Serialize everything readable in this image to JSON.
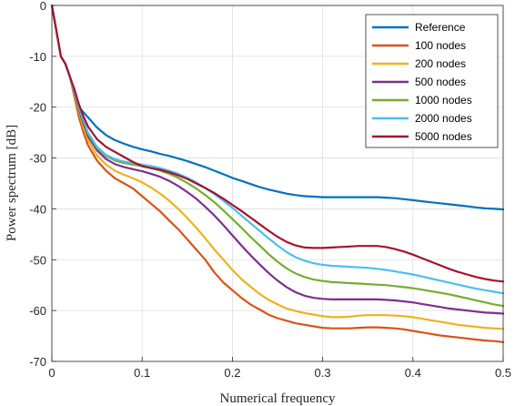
{
  "chart_data": {
    "type": "line",
    "title": "",
    "xlabel": "Numerical frequency",
    "ylabel": "Power spectrum [dB]",
    "xlim": [
      0,
      0.5
    ],
    "ylim": [
      -70,
      0
    ],
    "xticks": [
      0,
      0.1,
      0.2,
      0.3,
      0.4,
      0.5
    ],
    "yticks": [
      0,
      -10,
      -20,
      -30,
      -40,
      -50,
      -60,
      -70
    ],
    "grid": true,
    "legend_position": "top-right",
    "x": [
      0,
      0.005,
      0.01,
      0.015,
      0.02,
      0.025,
      0.03,
      0.035,
      0.04,
      0.05,
      0.06,
      0.07,
      0.08,
      0.09,
      0.1,
      0.11,
      0.12,
      0.13,
      0.14,
      0.15,
      0.16,
      0.17,
      0.18,
      0.19,
      0.2,
      0.21,
      0.22,
      0.23,
      0.24,
      0.25,
      0.26,
      0.27,
      0.28,
      0.29,
      0.3,
      0.31,
      0.32,
      0.33,
      0.34,
      0.35,
      0.36,
      0.37,
      0.38,
      0.39,
      0.4,
      0.41,
      0.42,
      0.43,
      0.44,
      0.45,
      0.46,
      0.47,
      0.48,
      0.49,
      0.5
    ],
    "series": [
      {
        "name": "Reference",
        "color": "#0072BD",
        "values": [
          0,
          -5,
          -10,
          -11.5,
          -14,
          -17,
          -20,
          -21,
          -22,
          -24,
          -25.5,
          -26.5,
          -27.2,
          -27.8,
          -28.3,
          -28.7,
          -29.2,
          -29.6,
          -30.1,
          -30.6,
          -31.2,
          -31.8,
          -32.5,
          -33.2,
          -33.9,
          -34.5,
          -35.1,
          -35.7,
          -36.2,
          -36.6,
          -37,
          -37.3,
          -37.5,
          -37.6,
          -37.7,
          -37.7,
          -37.7,
          -37.7,
          -37.7,
          -37.7,
          -37.7,
          -37.8,
          -37.9,
          -38.1,
          -38.3,
          -38.5,
          -38.7,
          -38.9,
          -39.1,
          -39.3,
          -39.5,
          -39.7,
          -39.9,
          -40.0,
          -40.1
        ]
      },
      {
        "name": "100 nodes",
        "color": "#D95319",
        "values": [
          0,
          -5,
          -10,
          -11.5,
          -14,
          -18,
          -22,
          -25,
          -27.5,
          -30.5,
          -32.5,
          -34,
          -35,
          -36,
          -37.5,
          -39,
          -40.5,
          -42.3,
          -44,
          -46,
          -48,
          -50,
          -52.5,
          -54.5,
          -56,
          -57.5,
          -58.8,
          -59.8,
          -60.8,
          -61.5,
          -62,
          -62.5,
          -62.8,
          -63.1,
          -63.4,
          -63.5,
          -63.5,
          -63.5,
          -63.4,
          -63.3,
          -63.3,
          -63.4,
          -63.5,
          -63.7,
          -64,
          -64.3,
          -64.6,
          -64.9,
          -65.1,
          -65.3,
          -65.5,
          -65.7,
          -65.9,
          -66.0,
          -66.2
        ]
      },
      {
        "name": "200 nodes",
        "color": "#EDB120",
        "values": [
          0,
          -5,
          -10,
          -11.5,
          -14,
          -17.5,
          -21,
          -24,
          -26.5,
          -29.5,
          -31.3,
          -32.5,
          -33.3,
          -34,
          -34.8,
          -35.8,
          -37,
          -38.4,
          -40,
          -41.8,
          -43.7,
          -45.8,
          -48,
          -50,
          -52,
          -53.8,
          -55.3,
          -56.7,
          -57.9,
          -58.8,
          -59.6,
          -60.1,
          -60.5,
          -60.8,
          -61.1,
          -61.3,
          -61.3,
          -61.2,
          -61.0,
          -60.9,
          -60.9,
          -60.9,
          -61.0,
          -61.1,
          -61.3,
          -61.6,
          -61.9,
          -62.2,
          -62.5,
          -62.8,
          -63.0,
          -63.2,
          -63.4,
          -63.5,
          -63.6
        ]
      },
      {
        "name": "500 nodes",
        "color": "#7E2F8E",
        "values": [
          0,
          -5,
          -10,
          -11.5,
          -14,
          -17.2,
          -20.5,
          -23.2,
          -25.7,
          -28.5,
          -30.2,
          -31.2,
          -31.8,
          -32.2,
          -32.6,
          -33.1,
          -33.7,
          -34.5,
          -35.5,
          -36.7,
          -38,
          -39.6,
          -41.3,
          -43.2,
          -45.2,
          -47.2,
          -49.1,
          -50.9,
          -52.6,
          -54.1,
          -55.4,
          -56.4,
          -57.1,
          -57.5,
          -57.7,
          -57.8,
          -57.8,
          -57.8,
          -57.8,
          -57.8,
          -57.8,
          -57.9,
          -58.0,
          -58.2,
          -58.4,
          -58.7,
          -59.0,
          -59.3,
          -59.6,
          -59.8,
          -60.0,
          -60.2,
          -60.4,
          -60.5,
          -60.6
        ]
      },
      {
        "name": "1000 nodes",
        "color": "#77AC30",
        "values": [
          0,
          -5,
          -10,
          -11.5,
          -14,
          -17,
          -20.2,
          -22.7,
          -25.2,
          -28,
          -29.6,
          -30.5,
          -31,
          -31.3,
          -31.6,
          -32,
          -32.5,
          -33.1,
          -33.9,
          -34.9,
          -36,
          -37.3,
          -38.7,
          -40.3,
          -42,
          -43.7,
          -45.5,
          -47.2,
          -48.9,
          -50.4,
          -51.7,
          -52.7,
          -53.4,
          -53.9,
          -54.2,
          -54.4,
          -54.5,
          -54.6,
          -54.7,
          -54.8,
          -54.9,
          -55.0,
          -55.2,
          -55.4,
          -55.6,
          -55.9,
          -56.2,
          -56.5,
          -56.8,
          -57.2,
          -57.6,
          -58.0,
          -58.4,
          -58.8,
          -59.1
        ]
      },
      {
        "name": "2000 nodes",
        "color": "#4DBEEE",
        "values": [
          0,
          -5,
          -10,
          -11.5,
          -14,
          -16.9,
          -20,
          -22.5,
          -25,
          -27.8,
          -29.4,
          -30.2,
          -30.7,
          -31,
          -31.3,
          -31.6,
          -32,
          -32.5,
          -33.1,
          -33.9,
          -34.8,
          -35.9,
          -37.1,
          -38.4,
          -39.8,
          -41.3,
          -42.8,
          -44.3,
          -45.8,
          -47.2,
          -48.5,
          -49.5,
          -50.2,
          -50.7,
          -51.0,
          -51.2,
          -51.3,
          -51.4,
          -51.5,
          -51.6,
          -51.8,
          -52.0,
          -52.3,
          -52.6,
          -52.9,
          -53.3,
          -53.7,
          -54.1,
          -54.5,
          -54.9,
          -55.3,
          -55.7,
          -56.0,
          -56.3,
          -56.6
        ]
      },
      {
        "name": "5000 nodes",
        "color": "#A2142F",
        "values": [
          0,
          -5,
          -10,
          -11.5,
          -14,
          -16.5,
          -19.5,
          -21.8,
          -23.8,
          -26.3,
          -27.8,
          -28.8,
          -29.8,
          -30.8,
          -31.6,
          -32,
          -32.3,
          -32.8,
          -33.4,
          -34.1,
          -35,
          -35.9,
          -36.9,
          -38,
          -39.2,
          -40.4,
          -41.7,
          -43,
          -44.3,
          -45.5,
          -46.5,
          -47.2,
          -47.6,
          -47.7,
          -47.7,
          -47.6,
          -47.5,
          -47.4,
          -47.3,
          -47.3,
          -47.3,
          -47.5,
          -47.9,
          -48.4,
          -49.0,
          -49.7,
          -50.4,
          -51.1,
          -51.8,
          -52.4,
          -52.9,
          -53.4,
          -53.8,
          -54.1,
          -54.3
        ]
      }
    ]
  }
}
